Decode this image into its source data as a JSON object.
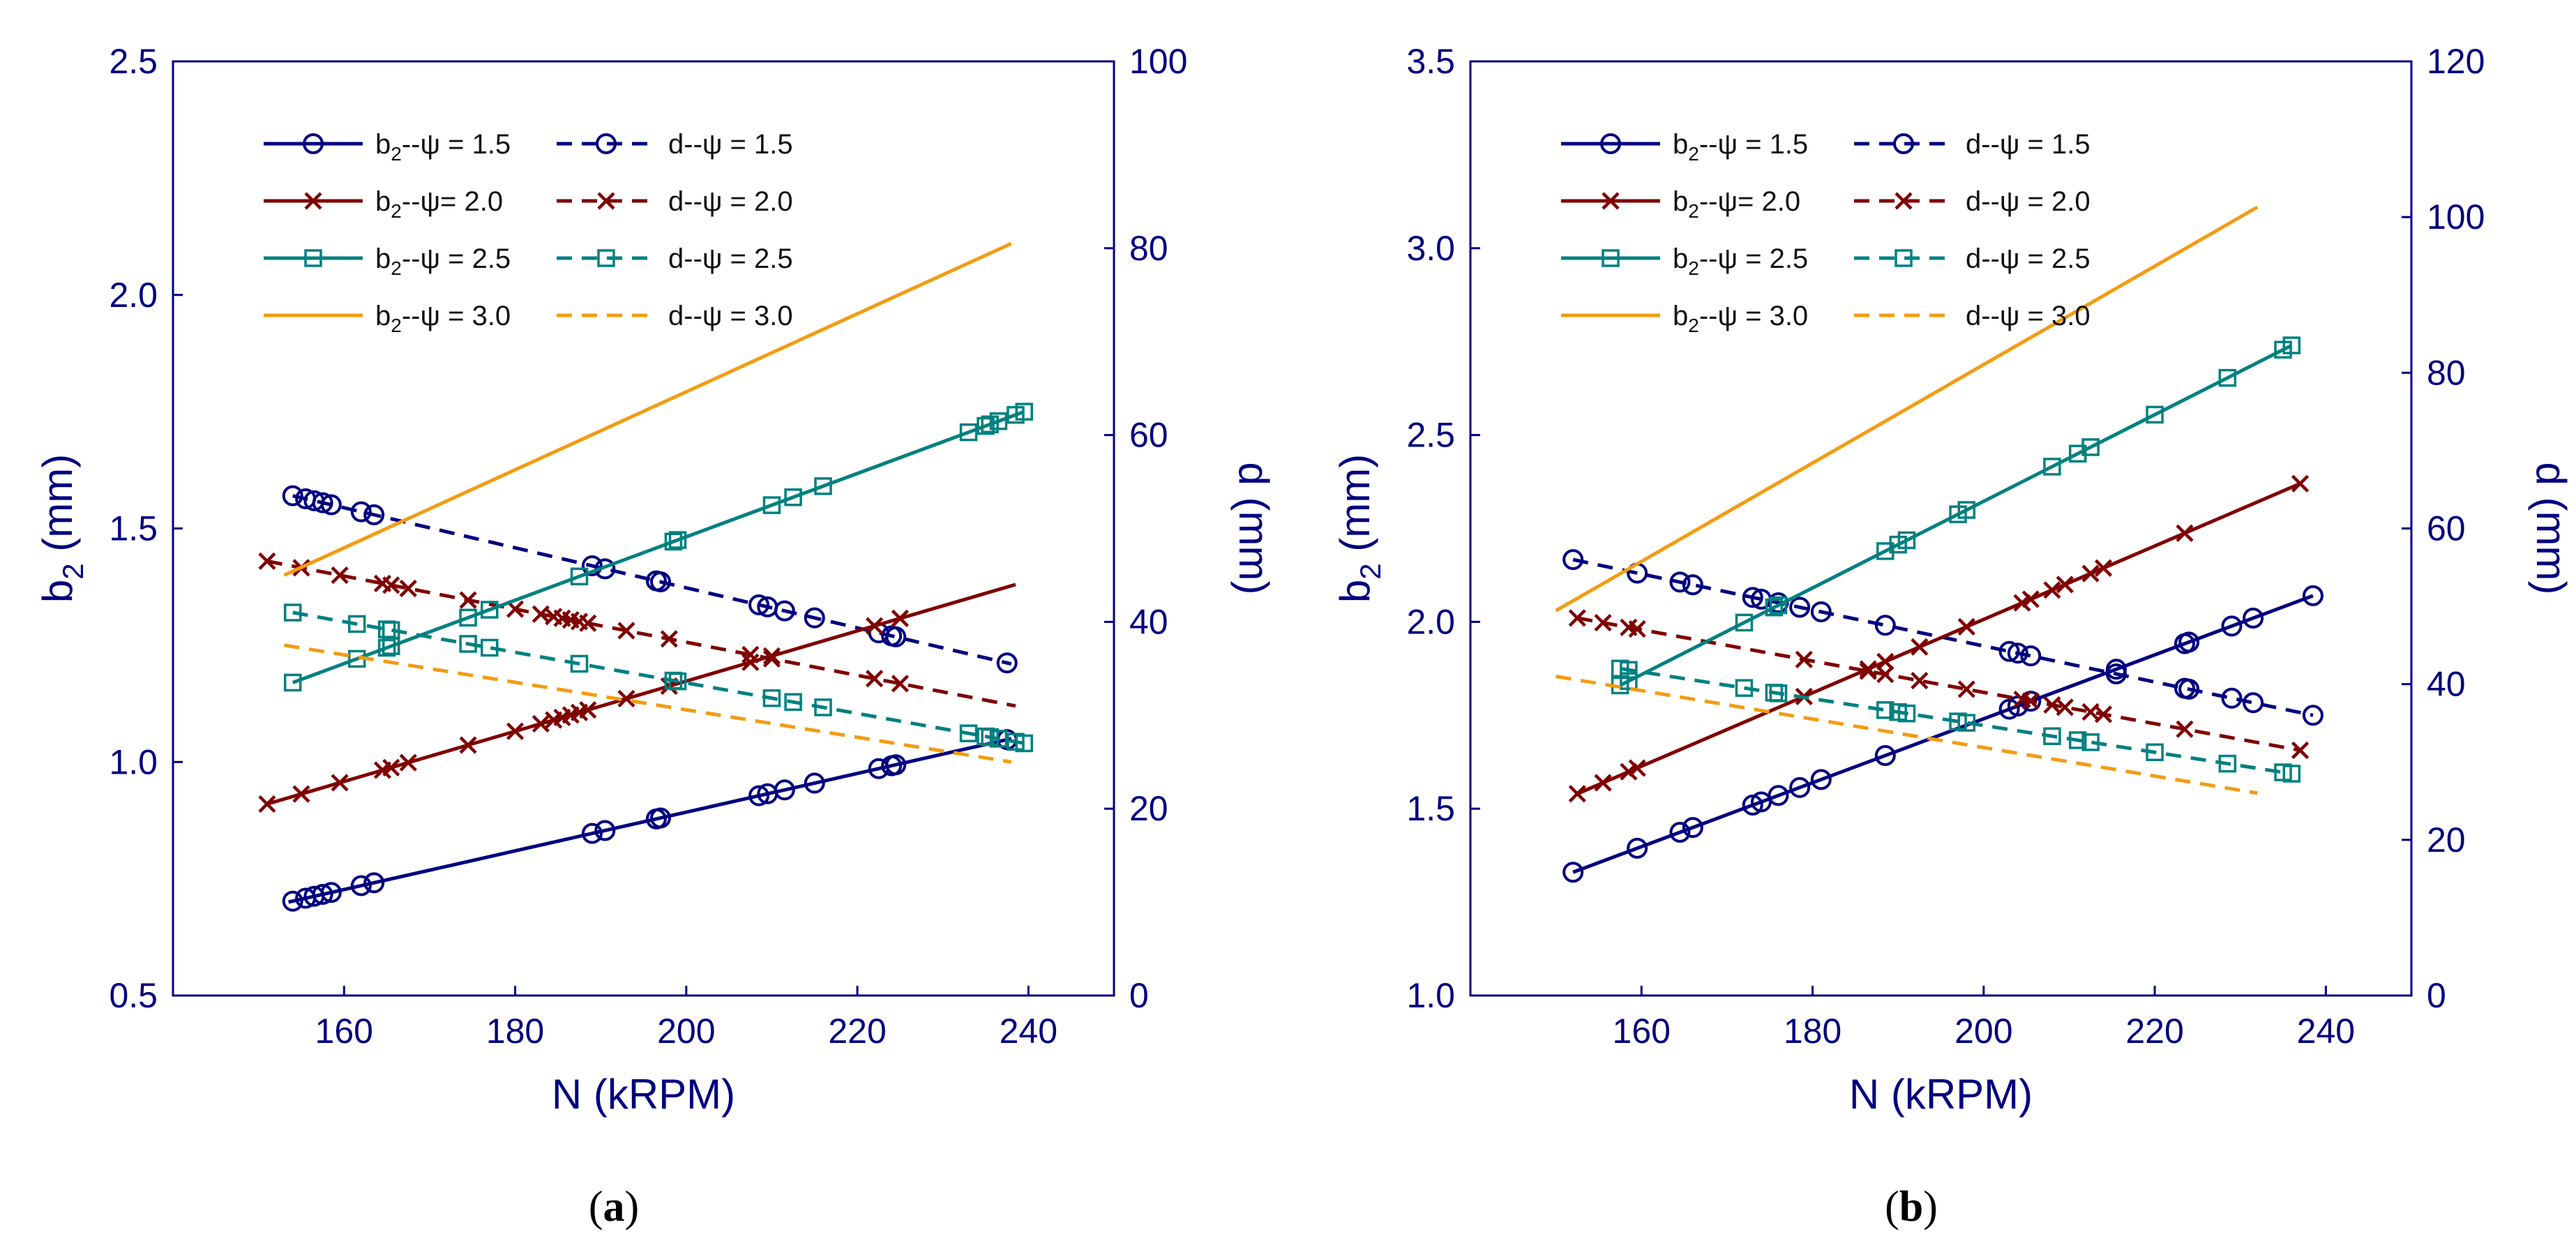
{
  "colors": {
    "axis": "#00007f",
    "psi15": "#000080",
    "psi20": "#800000",
    "psi25": "#008080",
    "psi30": "#f39c12"
  },
  "chart_data": [
    {
      "type": "line",
      "panel_label": "a",
      "xlabel": "N (kRPM)",
      "ylabel_left": {
        "main": "b",
        "sub": "2",
        "rest": " (mm)"
      },
      "ylabel_right": "d (mm)",
      "xlim": [
        140,
        250
      ],
      "ylim_left": [
        0.5,
        2.5
      ],
      "ylim_right": [
        0,
        100
      ],
      "xticks": [
        "160",
        "180",
        "200",
        "220",
        "240"
      ],
      "yticks_left": [
        "0.5",
        "1.0",
        "1.5",
        "2.0",
        "2.5"
      ],
      "yticks_right": [
        "0",
        "20",
        "40",
        "60",
        "80",
        "100"
      ],
      "legend": [
        "b2--ψ = 1.5",
        "d--ψ = 1.5",
        "b2--ψ= 2.0",
        "d--ψ = 2.0",
        "b2--ψ = 2.5",
        "d--ψ = 2.5",
        "b2--ψ = 3.0",
        "d--ψ = 3.0"
      ],
      "series": [
        {
          "name": "b2--ψ = 1.5",
          "psi": "1.5",
          "axis": "left",
          "dash": false,
          "marker": "circle",
          "line": [
            [
              153.5,
              0.7
            ],
            [
              238,
              1.05
            ]
          ],
          "marker_x": [
            154,
            155.5,
            156.5,
            157.5,
            158.5,
            162,
            163.5,
            189,
            190.5,
            196.5,
            197,
            208.5,
            209.5,
            211.5,
            215,
            222.5,
            224,
            224.5,
            237.5
          ]
        },
        {
          "name": "d--ψ = 1.5",
          "psi": "1.5",
          "axis": "right",
          "dash": true,
          "marker": "circle",
          "line": [
            [
              154,
              53.5
            ],
            [
              238,
              35.5
            ]
          ],
          "marker_x": [
            154,
            155.5,
            156.5,
            157.5,
            158.5,
            162,
            163.5,
            189,
            190.5,
            196.5,
            197,
            208.5,
            209.5,
            211.5,
            215,
            222.5,
            224,
            224.5,
            237.5
          ]
        },
        {
          "name": "b2--ψ= 2.0",
          "psi": "2.0",
          "axis": "left",
          "dash": false,
          "marker": "x",
          "line": [
            [
              151,
              0.91
            ],
            [
              238.5,
              1.38
            ]
          ],
          "marker_x": [
            151,
            155,
            159.5,
            164.5,
            165.5,
            167.5,
            174.5,
            180,
            183,
            184.5,
            185.5,
            186.5,
            187.5,
            188.5,
            193,
            198,
            207.5,
            210,
            222,
            225
          ]
        },
        {
          "name": "d--ψ = 2.0",
          "psi": "2.0",
          "axis": "right",
          "dash": true,
          "marker": "x",
          "line": [
            [
              151,
              46.5
            ],
            [
              238.5,
              31.0
            ]
          ],
          "marker_x": [
            151,
            155,
            159.5,
            164.5,
            165.5,
            167.5,
            174.5,
            180,
            183,
            184.5,
            185.5,
            186.5,
            187.5,
            188.5,
            193,
            198,
            207.5,
            210,
            222,
            225
          ]
        },
        {
          "name": "b2--ψ = 2.5",
          "psi": "2.5",
          "axis": "left",
          "dash": false,
          "marker": "square",
          "line": [
            [
              154,
              1.17
            ],
            [
              239.5,
              1.75
            ]
          ],
          "marker_x": [
            154,
            161.5,
            165,
            165.5,
            174.5,
            177,
            187.5,
            198.5,
            199,
            210,
            212.5,
            216,
            233,
            235,
            235.5,
            236.5,
            238.5,
            239.5
          ]
        },
        {
          "name": "d--ψ = 2.5",
          "psi": "2.5",
          "axis": "right",
          "dash": true,
          "marker": "square",
          "line": [
            [
              154,
              41.0
            ],
            [
              239.5,
              27.0
            ]
          ],
          "marker_x": [
            154,
            161.5,
            165,
            165.5,
            174.5,
            177,
            187.5,
            198.5,
            199,
            210,
            212.5,
            216,
            233,
            235,
            235.5,
            236.5,
            238.5,
            239.5
          ]
        },
        {
          "name": "b2--ψ = 3.0",
          "psi": "3.0",
          "axis": "left",
          "dash": false,
          "marker": "none",
          "line": [
            [
              153,
              1.4
            ],
            [
              238,
              2.11
            ]
          ],
          "marker_x": []
        },
        {
          "name": "d--ψ = 3.0",
          "psi": "3.0",
          "axis": "right",
          "dash": true,
          "marker": "none",
          "line": [
            [
              153,
              37.5
            ],
            [
              238,
              25.0
            ]
          ],
          "marker_x": []
        }
      ]
    },
    {
      "type": "line",
      "panel_label": "b",
      "xlabel": "N (kRPM)",
      "ylabel_left": {
        "main": "b",
        "sub": "2",
        "rest": " (mm)"
      },
      "ylabel_right": "d (mm)",
      "xlim": [
        140,
        250
      ],
      "ylim_left": [
        1.0,
        3.5
      ],
      "ylim_right": [
        0,
        120
      ],
      "xticks": [
        "160",
        "180",
        "200",
        "220",
        "240"
      ],
      "yticks_left": [
        "1.0",
        "1.5",
        "2.0",
        "2.5",
        "3.0",
        "3.5"
      ],
      "yticks_right": [
        "0",
        "20",
        "40",
        "60",
        "80",
        "100",
        "120"
      ],
      "legend": [
        "b2--ψ = 1.5",
        "d--ψ = 1.5",
        "b2--ψ= 2.0",
        "d--ψ = 2.0",
        "b2--ψ = 2.5",
        "d--ψ = 2.5",
        "b2--ψ = 3.0",
        "d--ψ = 3.0"
      ],
      "series": [
        {
          "name": "b2--ψ = 1.5",
          "psi": "1.5",
          "axis": "left",
          "dash": false,
          "marker": "circle",
          "line": [
            [
              152,
              1.33
            ],
            [
              238.5,
              2.07
            ]
          ],
          "marker_x": [
            152,
            159.5,
            164.5,
            166,
            173,
            174,
            176,
            178.5,
            181,
            188.5,
            203,
            204,
            205.5,
            215.5,
            223.5,
            224,
            229,
            231.5,
            238.5
          ]
        },
        {
          "name": "d--ψ = 1.5",
          "psi": "1.5",
          "axis": "right",
          "dash": true,
          "marker": "circle",
          "line": [
            [
              152,
              56.0
            ],
            [
              238.5,
              36.0
            ]
          ],
          "marker_x": [
            152,
            159.5,
            164.5,
            166,
            173,
            174,
            176,
            178.5,
            181,
            188.5,
            203,
            204,
            205.5,
            215.5,
            223.5,
            224,
            229,
            231.5,
            238.5
          ]
        },
        {
          "name": "b2--ψ= 2.0",
          "psi": "2.0",
          "axis": "left",
          "dash": false,
          "marker": "x",
          "line": [
            [
              152.5,
              1.54
            ],
            [
              237,
              2.37
            ]
          ],
          "marker_x": [
            152.5,
            155.5,
            158.5,
            159.5,
            179,
            186.5,
            188.5,
            192.5,
            198,
            204.5,
            205.5,
            208,
            209.5,
            212.5,
            214,
            223.5,
            237
          ]
        },
        {
          "name": "d--ψ = 2.0",
          "psi": "2.0",
          "axis": "right",
          "dash": true,
          "marker": "x",
          "line": [
            [
              152.5,
              48.5
            ],
            [
              237,
              31.5
            ]
          ],
          "marker_x": [
            152.5,
            155.5,
            158.5,
            159.5,
            179,
            186.5,
            188.5,
            192.5,
            198,
            204.5,
            205.5,
            208,
            209.5,
            212.5,
            214,
            223.5,
            237
          ]
        },
        {
          "name": "b2--ψ = 2.5",
          "psi": "2.5",
          "axis": "left",
          "dash": false,
          "marker": "square",
          "line": [
            [
              157.5,
              1.83
            ],
            [
              236,
              2.74
            ]
          ],
          "marker_x": [
            157.5,
            158.5,
            172,
            175.5,
            176,
            188.5,
            190,
            191,
            197,
            198,
            208,
            211,
            212.5,
            220,
            228.5,
            235,
            236
          ]
        },
        {
          "name": "d--ψ = 2.5",
          "psi": "2.5",
          "axis": "right",
          "dash": true,
          "marker": "square",
          "line": [
            [
              157.5,
              42.0
            ],
            [
              236,
              28.5
            ]
          ],
          "marker_x": [
            157.5,
            158.5,
            172,
            175.5,
            176,
            188.5,
            190,
            191,
            197,
            198,
            208,
            211,
            212.5,
            220,
            228.5,
            235,
            236
          ]
        },
        {
          "name": "b2--ψ = 3.0",
          "psi": "3.0",
          "axis": "left",
          "dash": false,
          "marker": "none",
          "line": [
            [
              150,
              2.03
            ],
            [
              232,
              3.11
            ]
          ],
          "marker_x": []
        },
        {
          "name": "d--ψ = 3.0",
          "psi": "3.0",
          "axis": "right",
          "dash": true,
          "marker": "none",
          "line": [
            [
              150,
              41.0
            ],
            [
              232,
              26.0
            ]
          ],
          "marker_x": []
        }
      ]
    }
  ]
}
